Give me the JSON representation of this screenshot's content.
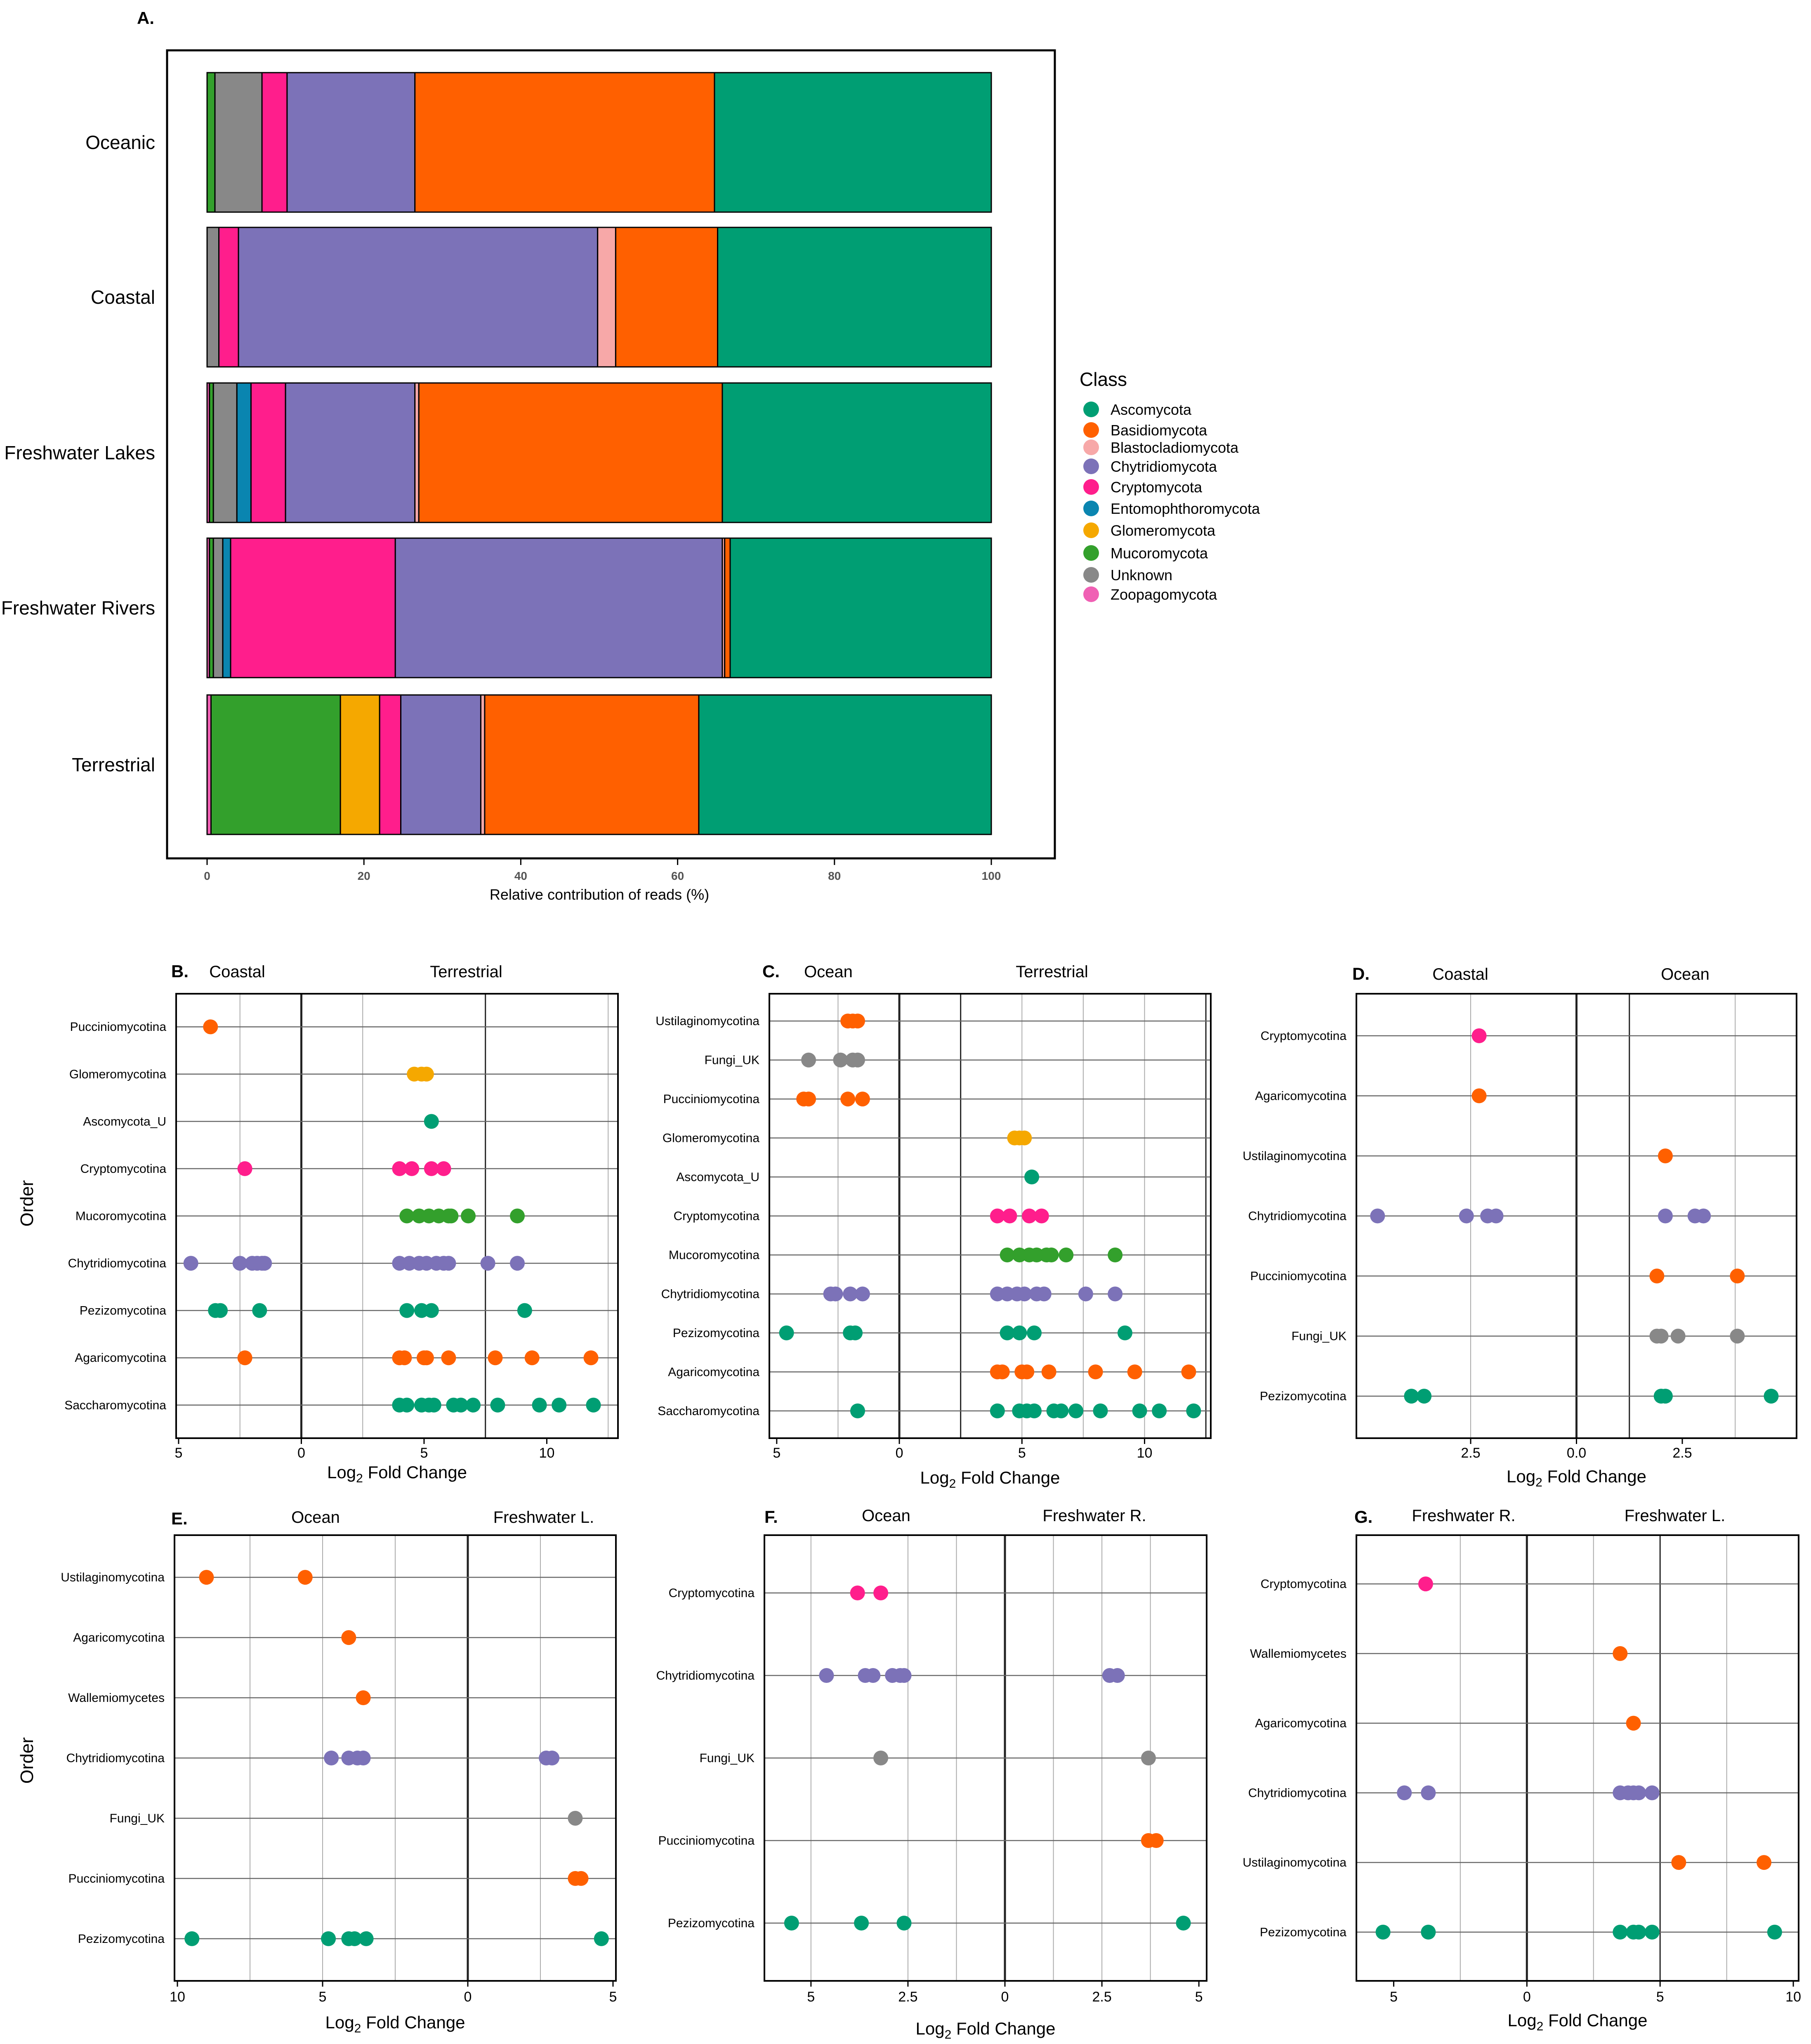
{
  "colors": {
    "Ascomycota": "#009E73",
    "Basidiomycota": "#FF6000",
    "Blastocladiomycota": "#F7A8A8",
    "Chytridiomycota": "#7C72B8",
    "Cryptomycota": "#FF1E8C",
    "Entomophthoromycota": "#0A85B0",
    "Glomeromycota": "#F5A800",
    "Mucoromycota": "#33A02C",
    "Unknown": "#888888",
    "Zoopagomycota": "#F060B4"
  },
  "legend": {
    "title": "Class",
    "items": [
      "Ascomycota",
      "Basidiomycota",
      "Blastocladiomycota",
      "Chytridiomycota",
      "Cryptomycota",
      "Entomophthoromycota",
      "Glomeromycota",
      "Mucoromycota",
      "Unknown",
      "Zoopagomycota"
    ]
  },
  "chart_data": [
    {
      "id": "A",
      "panel_label": "A.",
      "type": "bar",
      "orientation": "horizontal",
      "stacked": true,
      "categories": [
        "Oceanic",
        "Coastal",
        "Freshwater Lakes",
        "Freshwater Rivers",
        "Terrestrial"
      ],
      "xlabel": "Relative  contribution of reads (%)",
      "xlim": [
        0,
        100
      ],
      "xticks": [
        0,
        20,
        40,
        60,
        80,
        100
      ],
      "series": [
        {
          "name": "Zoopagomycota",
          "values": [
            0,
            0,
            0.3,
            0.3,
            0.5
          ]
        },
        {
          "name": "Mucoromycota",
          "values": [
            1,
            0,
            0.5,
            0.5,
            16.5
          ]
        },
        {
          "name": "Unknown",
          "values": [
            6,
            1.5,
            3,
            1.2,
            0
          ]
        },
        {
          "name": "Entomophthoromycota",
          "values": [
            0,
            0,
            1.8,
            1,
            0
          ]
        },
        {
          "name": "Glomeromycota",
          "values": [
            0,
            0,
            0,
            0,
            5
          ]
        },
        {
          "name": "Cryptomycota",
          "values": [
            3.2,
            2.5,
            4.4,
            21,
            2.7
          ]
        },
        {
          "name": "Chytridiomycota",
          "values": [
            16.3,
            45.8,
            16.5,
            41.7,
            10.2
          ]
        },
        {
          "name": "Blastocladiomycota",
          "values": [
            0,
            2.3,
            0.5,
            0.3,
            0.5
          ]
        },
        {
          "name": "Basidiomycota",
          "values": [
            38.2,
            13,
            38.7,
            0.7,
            27.3
          ]
        },
        {
          "name": "Ascomycota",
          "values": [
            35.3,
            34.9,
            34.3,
            33.3,
            37.3
          ]
        }
      ]
    },
    {
      "id": "B",
      "panel_label": "B.",
      "type": "scatter",
      "left_group": "Coastal",
      "right_group": "Terrestrial",
      "xlabel_main": "Log",
      "xlabel_sub": "2",
      "xlabel_rest": " Fold Change",
      "ylabel": "Order",
      "xlim": [
        -5.1,
        12.9
      ],
      "divider": 0,
      "ticks": [
        -5,
        0,
        5,
        10
      ],
      "tick_labels": [
        "5",
        "0",
        "5",
        "10"
      ],
      "vgrid": [
        -2.5,
        0,
        2.5,
        7.5,
        12.5
      ],
      "vgrid_major": [
        0,
        7.5
      ],
      "rows": [
        {
          "label": "Pucciniomycotina",
          "cls": "Basidiomycota",
          "x": [
            -3.7
          ]
        },
        {
          "label": "Glomeromycotina",
          "cls": "Glomeromycota",
          "x": [
            4.6,
            4.9,
            5.1
          ]
        },
        {
          "label": "Ascomycota_U",
          "cls": "Ascomycota",
          "x": [
            5.3
          ]
        },
        {
          "label": "Cryptomycotina",
          "cls": "Cryptomycota",
          "x": [
            -2.3,
            4.0,
            4.5,
            5.3,
            5.8
          ]
        },
        {
          "label": "Mucoromycotina",
          "cls": "Mucoromycota",
          "x": [
            4.3,
            4.8,
            5.2,
            5.6,
            6.0,
            6.1,
            6.8,
            8.8
          ]
        },
        {
          "label": "Chytridiomycotina",
          "cls": "Chytridiomycota",
          "x": [
            -4.5,
            -2.5,
            -2.0,
            -1.8,
            -1.6,
            -1.5,
            4.0,
            4.4,
            4.8,
            5.1,
            5.5,
            5.8,
            6.0,
            7.6,
            8.8
          ]
        },
        {
          "label": "Pezizomycotina",
          "cls": "Ascomycota",
          "x": [
            -3.5,
            -3.3,
            -1.7,
            4.3,
            4.9,
            5.3,
            9.1
          ]
        },
        {
          "label": "Agaricomycotina",
          "cls": "Basidiomycota",
          "x": [
            -2.3,
            4.0,
            4.2,
            5.0,
            5.1,
            6.0,
            7.9,
            9.4,
            11.8
          ]
        },
        {
          "label": "Saccharomycotina",
          "cls": "Ascomycota",
          "x": [
            4.0,
            4.3,
            4.9,
            5.2,
            5.4,
            6.2,
            6.5,
            7.0,
            8.0,
            9.7,
            10.5,
            11.9
          ]
        }
      ]
    },
    {
      "id": "C",
      "panel_label": "C.",
      "type": "scatter",
      "left_group": "Ocean",
      "right_group": "Terrestrial",
      "xlabel_main": "Log",
      "xlabel_sub": "2",
      "xlabel_rest": " Fold Change",
      "ylabel": "",
      "xlim": [
        -5.3,
        12.7
      ],
      "divider": 0,
      "ticks": [
        -5,
        0,
        5,
        10
      ],
      "tick_labels": [
        "5",
        "0",
        "5",
        "10"
      ],
      "vgrid": [
        -2.5,
        0,
        2.5,
        5,
        7.5,
        10,
        12.5
      ],
      "vgrid_major": [
        0,
        2.5,
        12.5
      ],
      "rows": [
        {
          "label": "Ustilaginomycotina",
          "cls": "Basidiomycota",
          "x": [
            -2.1,
            -1.9,
            -1.7
          ]
        },
        {
          "label": "Fungi_UK",
          "cls": "Unknown",
          "x": [
            -3.7,
            -2.4,
            -1.9,
            -1.7
          ]
        },
        {
          "label": "Pucciniomycotina",
          "cls": "Basidiomycota",
          "x": [
            -3.9,
            -3.7,
            -2.1,
            -1.5
          ]
        },
        {
          "label": "Glomeromycotina",
          "cls": "Glomeromycota",
          "x": [
            4.7,
            4.9,
            5.1
          ]
        },
        {
          "label": "Ascomycota_U",
          "cls": "Ascomycota",
          "x": [
            5.4
          ]
        },
        {
          "label": "Cryptomycotina",
          "cls": "Cryptomycota",
          "x": [
            4.0,
            4.5,
            5.3,
            5.8
          ]
        },
        {
          "label": "Mucoromycotina",
          "cls": "Mucoromycota",
          "x": [
            4.4,
            4.9,
            5.3,
            5.6,
            6.0,
            6.2,
            6.8,
            8.8
          ]
        },
        {
          "label": "Chytridiomycotina",
          "cls": "Chytridiomycota",
          "x": [
            -2.8,
            -2.6,
            -2.0,
            -1.5,
            4.0,
            4.4,
            4.8,
            5.1,
            5.6,
            5.9,
            7.6,
            8.8
          ]
        },
        {
          "label": "Pezizomycotina",
          "cls": "Ascomycota",
          "x": [
            -4.6,
            -2.0,
            -1.8,
            4.4,
            4.9,
            5.5,
            9.2
          ]
        },
        {
          "label": "Agaricomycotina",
          "cls": "Basidiomycota",
          "x": [
            4.0,
            4.2,
            5.0,
            5.2,
            6.1,
            8.0,
            9.6,
            11.8
          ]
        },
        {
          "label": "Saccharomycotina",
          "cls": "Ascomycota",
          "x": [
            -1.7,
            4.0,
            4.9,
            5.2,
            5.5,
            6.3,
            6.6,
            7.2,
            8.2,
            9.8,
            10.6,
            12.0
          ]
        }
      ]
    },
    {
      "id": "D",
      "panel_label": "D.",
      "type": "scatter",
      "left_group": "Coastal",
      "right_group": "Ocean",
      "xlabel_main": "Log",
      "xlabel_sub": "2",
      "xlabel_rest": " Fold Change",
      "ylabel": "",
      "xlim": [
        -5.2,
        5.2
      ],
      "divider": 0,
      "ticks": [
        -2.5,
        0,
        2.5
      ],
      "tick_labels": [
        "2.5",
        "0.0",
        "2.5"
      ],
      "vgrid": [
        -2.5,
        0,
        1.25,
        3.75
      ],
      "vgrid_major": [
        0,
        1.25
      ],
      "rows": [
        {
          "label": "Cryptomycotina",
          "cls": "Cryptomycota",
          "x": [
            -2.3
          ]
        },
        {
          "label": "Agaricomycotina",
          "cls": "Basidiomycota",
          "x": [
            -2.3
          ]
        },
        {
          "label": "Ustilaginomycotina",
          "cls": "Basidiomycota",
          "x": [
            2.1
          ]
        },
        {
          "label": "Chytridiomycotina",
          "cls": "Chytridiomycota",
          "x": [
            -4.7,
            -2.6,
            -2.1,
            -1.9,
            2.1,
            2.8,
            3.0
          ]
        },
        {
          "label": "Pucciniomycotina",
          "cls": "Basidiomycota",
          "x": [
            1.9,
            3.8
          ]
        },
        {
          "label": "Fungi_UK",
          "cls": "Unknown",
          "x": [
            1.9,
            2.0,
            2.4,
            3.8
          ]
        },
        {
          "label": "Pezizomycotina",
          "cls": "Ascomycota",
          "x": [
            -3.9,
            -3.6,
            2.0,
            2.1,
            4.6
          ]
        }
      ]
    },
    {
      "id": "E",
      "panel_label": "E.",
      "type": "scatter",
      "left_group": "Ocean",
      "right_group": "Freshwater L.",
      "xlabel_main": "Log",
      "xlabel_sub": "2",
      "xlabel_rest": " Fold Change",
      "ylabel": "Order",
      "xlim": [
        -10.1,
        5.1
      ],
      "divider": 0,
      "ticks": [
        -10,
        -5,
        0,
        5
      ],
      "tick_labels": [
        "10",
        "5",
        "0",
        "5"
      ],
      "vgrid": [
        -7.5,
        -5,
        -2.5,
        0,
        2.5
      ],
      "vgrid_major": [
        0
      ],
      "rows": [
        {
          "label": "Ustilaginomycotina",
          "cls": "Basidiomycota",
          "x": [
            -9.0,
            -5.6
          ]
        },
        {
          "label": "Agaricomycotina",
          "cls": "Basidiomycota",
          "x": [
            -4.1
          ]
        },
        {
          "label": "Wallemiomycetes",
          "cls": "Basidiomycota",
          "x": [
            -3.6
          ]
        },
        {
          "label": "Chytridiomycotina",
          "cls": "Chytridiomycota",
          "x": [
            -4.7,
            -4.1,
            -3.8,
            -3.6,
            2.7,
            2.9
          ]
        },
        {
          "label": "Fungi_UK",
          "cls": "Unknown",
          "x": [
            3.7
          ]
        },
        {
          "label": "Pucciniomycotina",
          "cls": "Basidiomycota",
          "x": [
            3.7,
            3.9
          ]
        },
        {
          "label": "Pezizomycotina",
          "cls": "Ascomycota",
          "x": [
            -9.5,
            -4.8,
            -4.1,
            -3.9,
            -3.5,
            4.6
          ]
        }
      ]
    },
    {
      "id": "F",
      "panel_label": "F.",
      "type": "scatter",
      "left_group": "Ocean",
      "right_group": "Freshwater R.",
      "xlabel_main": "Log",
      "xlabel_sub": "2",
      "xlabel_rest": " Fold Change",
      "ylabel": "",
      "xlim": [
        -6.2,
        5.2
      ],
      "divider": 0,
      "ticks": [
        -5,
        -2.5,
        0,
        2.5,
        5
      ],
      "tick_labels": [
        "5",
        "2.5",
        "0",
        "2.5",
        "5"
      ],
      "vgrid": [
        -5,
        -2.5,
        -1.25,
        0,
        1.25,
        2.5,
        3.75
      ],
      "vgrid_major": [
        0
      ],
      "rows": [
        {
          "label": "Cryptomycotina",
          "cls": "Cryptomycota",
          "x": [
            -3.8,
            -3.2
          ]
        },
        {
          "label": "Chytridiomycotina",
          "cls": "Chytridiomycota",
          "x": [
            -4.6,
            -3.6,
            -3.4,
            -2.9,
            -2.7,
            -2.6,
            2.7,
            2.9
          ]
        },
        {
          "label": "Fungi_UK",
          "cls": "Unknown",
          "x": [
            -3.2,
            3.7
          ]
        },
        {
          "label": "Pucciniomycotina",
          "cls": "Basidiomycota",
          "x": [
            3.7,
            3.9
          ]
        },
        {
          "label": "Pezizomycotina",
          "cls": "Ascomycota",
          "x": [
            -5.5,
            -3.7,
            -2.6,
            4.6
          ]
        }
      ]
    },
    {
      "id": "G",
      "panel_label": "G.",
      "type": "scatter",
      "left_group": "Freshwater R.",
      "right_group": "Freshwater L.",
      "xlabel_main": "Log",
      "xlabel_sub": "2",
      "xlabel_rest": " Fold Change",
      "ylabel": "",
      "xlim": [
        -6.4,
        10.2
      ],
      "divider": 0,
      "ticks": [
        -5,
        0,
        5,
        10
      ],
      "tick_labels": [
        "5",
        "0",
        "5",
        "10"
      ],
      "vgrid": [
        -2.5,
        0,
        2.5,
        5,
        7.5
      ],
      "vgrid_major": [
        0,
        5
      ],
      "rows": [
        {
          "label": "Cryptomycotina",
          "cls": "Cryptomycota",
          "x": [
            -3.8
          ]
        },
        {
          "label": "Wallemiomycetes",
          "cls": "Basidiomycota",
          "x": [
            3.5
          ]
        },
        {
          "label": "Agaricomycotina",
          "cls": "Basidiomycota",
          "x": [
            4.0
          ]
        },
        {
          "label": "Chytridiomycotina",
          "cls": "Chytridiomycota",
          "x": [
            -4.6,
            -3.7,
            3.5,
            3.8,
            4.0,
            4.2,
            4.7
          ]
        },
        {
          "label": "Ustilaginomycotina",
          "cls": "Basidiomycota",
          "x": [
            5.7,
            8.9
          ]
        },
        {
          "label": "Pezizomycotina",
          "cls": "Ascomycota",
          "x": [
            -5.4,
            -3.7,
            3.5,
            4.0,
            4.2,
            4.7,
            9.3
          ]
        }
      ]
    }
  ]
}
